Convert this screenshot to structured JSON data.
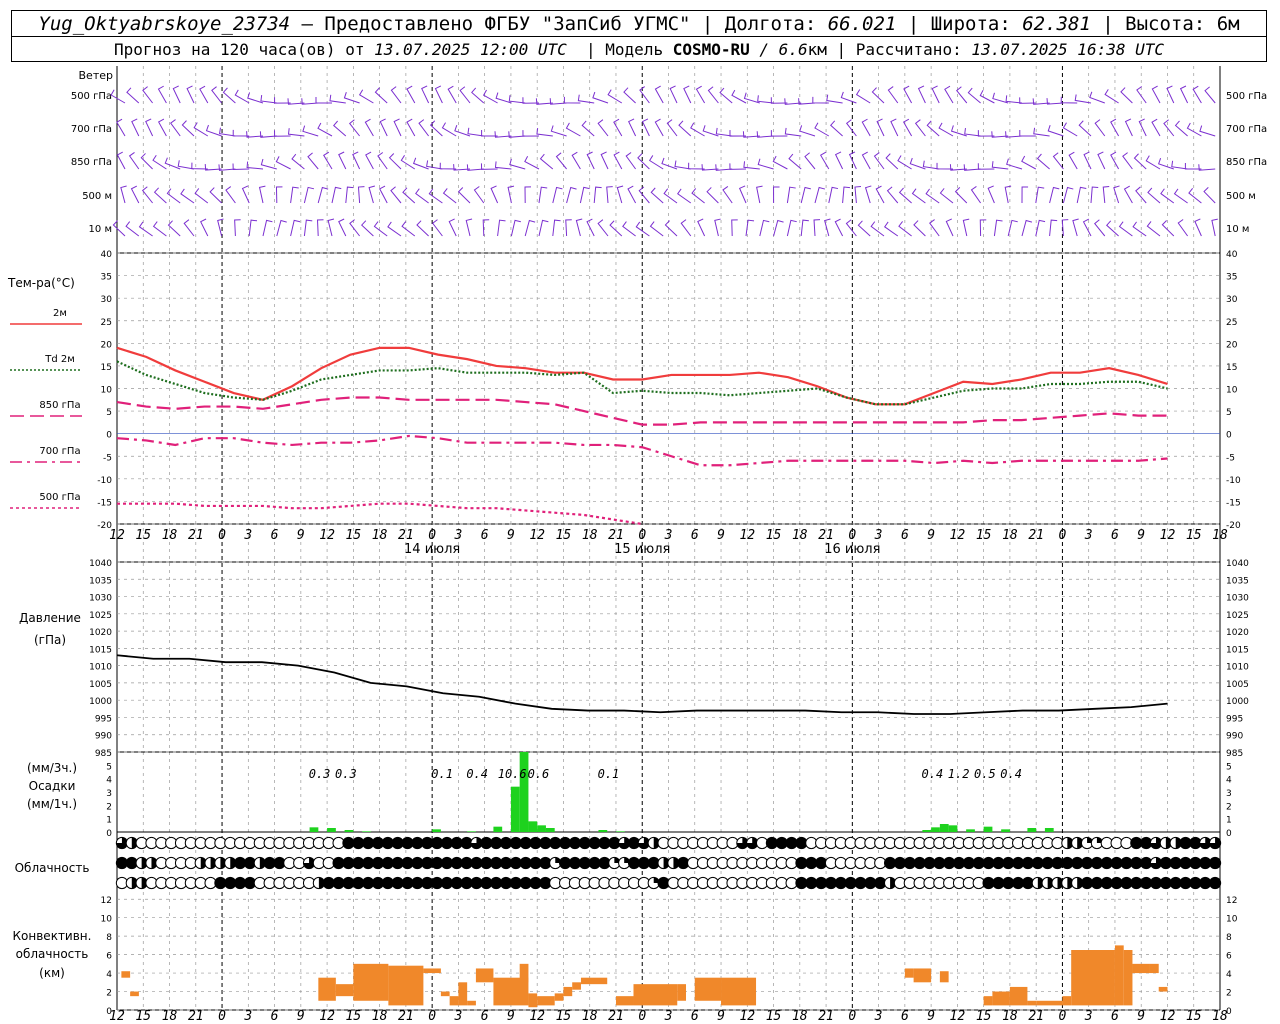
{
  "header": {
    "station": "Yug_Oktyabrskoye_23734",
    "provider": " – Предоставлено ФГБУ \"ЗапСиб УГМС\" | Долгота: ",
    "longitude": "66.021",
    "lat_label": " | Широта: ",
    "latitude": "62.381",
    "alt_label": " | Высота: 6м",
    "fc_label": "Прогноз на 120 часа(ов) от ",
    "fc_time": "13.07.2025 12:00 UTC",
    "model_label": "  | Модель ",
    "model": "COSMO-RU",
    "model_res": " / 6.6",
    "model_unit": "км | Рассчитано: ",
    "calc_time": "13.07.2025 16:38 UTC"
  },
  "colors": {
    "wind": "#7b2fd0",
    "t2m": "#f03c3c",
    "td2m": "#1e6e1e",
    "t850": "#e0207a",
    "t700": "#e0207a",
    "t500": "#e0207a",
    "pressure": "#000000",
    "precip": "#1ed21e",
    "conv": "#f0882a",
    "grid": "#999999"
  },
  "wind_panel": {
    "title": "Ветер",
    "levels": [
      "500 гПа",
      "700 гПа",
      "850 гПа",
      "500 м",
      "10  м"
    ]
  },
  "temp_panel": {
    "title": "Тем-ра(°C)",
    "legend": [
      {
        "label": "2м",
        "style": "solid"
      },
      {
        "label": "Td  2м",
        "style": "dotted"
      },
      {
        "label": "850 гПа",
        "style": "dash"
      },
      {
        "label": "700 гПа",
        "style": "dashdot"
      },
      {
        "label": "500 гПа",
        "style": "short"
      }
    ]
  },
  "pressure_panel": {
    "title1": "Давление",
    "title2": "(гПа)"
  },
  "precip_panel": {
    "l1": "(мм/3ч.)",
    "l2": "Осадки",
    "l3": "(мм/1ч.)"
  },
  "cloud_panel": {
    "title": "Облачность"
  },
  "conv_panel": {
    "l1": "Конвективн.",
    "l2": "облачность",
    "l3": "(км)"
  },
  "dates": [
    "14 июля",
    "15 июля",
    "16 июля"
  ],
  "chart_data": {
    "type": "line",
    "x_hours": [
      0,
      3,
      6,
      9,
      12,
      15,
      18,
      21,
      24,
      27,
      30,
      33,
      36,
      39,
      42,
      45,
      48,
      51,
      54,
      57,
      60,
      63,
      66,
      69,
      72,
      75,
      78,
      81,
      84,
      87,
      90,
      93,
      96,
      99,
      102,
      105,
      108,
      111,
      114,
      117,
      120
    ],
    "x_ticks": [
      "12",
      "15",
      "18",
      "21",
      "0",
      "3",
      "6",
      "9",
      "12",
      "15",
      "18",
      "21",
      "0",
      "3",
      "6",
      "9",
      "12",
      "15",
      "18",
      "21",
      "0",
      "3",
      "6",
      "9",
      "12",
      "15",
      "18",
      "21",
      "0",
      "3",
      "6",
      "9",
      "12",
      "15",
      "18",
      "21",
      "0",
      "3",
      "6",
      "9",
      "12",
      "15",
      "18"
    ],
    "temperature": {
      "ylim": [
        -20,
        40
      ],
      "yticks": [
        -20,
        -15,
        -10,
        -5,
        0,
        5,
        10,
        15,
        20,
        25,
        30,
        35,
        40
      ],
      "series": [
        {
          "name": "2м",
          "values": [
            19,
            17,
            14,
            11.5,
            9,
            7.5,
            10.5,
            14.5,
            17.5,
            19,
            19,
            17.5,
            16.5,
            15,
            14.5,
            13.5,
            13.5,
            12,
            12,
            13,
            13,
            13,
            13.5,
            12.5,
            10.5,
            8,
            6.5,
            6.5,
            9,
            11.5,
            11,
            12,
            13.5,
            13.5,
            14.5,
            13,
            11
          ]
        },
        {
          "name": "Td  2м",
          "values": [
            16,
            13,
            11,
            9,
            8,
            7.5,
            9.5,
            12,
            13,
            14,
            14,
            14.5,
            13.5,
            13.5,
            13.5,
            13,
            13.5,
            9,
            9.5,
            9,
            9,
            8.5,
            9,
            9.5,
            10,
            8,
            6.5,
            6.5,
            8,
            9.5,
            10,
            10,
            11,
            11,
            11.5,
            11.5,
            10
          ]
        },
        {
          "name": "850 гПа",
          "values": [
            7,
            6,
            5.5,
            6,
            6,
            5.5,
            6.5,
            7.5,
            8,
            8,
            7.5,
            7.5,
            7.5,
            7.5,
            7,
            6.5,
            5,
            3.5,
            2,
            2,
            2.5,
            2.5,
            2.5,
            2.5,
            2.5,
            2.5,
            2.5,
            2.5,
            2.5,
            2.5,
            3,
            3,
            3.5,
            4,
            4.5,
            4,
            4
          ]
        },
        {
          "name": "700 гПа",
          "values": [
            -1,
            -1.5,
            -2.5,
            -1,
            -1,
            -2,
            -2.5,
            -2,
            -2,
            -1.5,
            -0.5,
            -1,
            -2,
            -2,
            -2,
            -2,
            -2.5,
            -2.5,
            -3,
            -5,
            -7,
            -7,
            -6.5,
            -6,
            -6,
            -6,
            -6,
            -6,
            -6.5,
            -6,
            -6.5,
            -6,
            -6,
            -6,
            -6,
            -6,
            -5.5
          ]
        },
        {
          "name": "500 гПа",
          "values": [
            -15.5,
            -15.5,
            -15.5,
            -16,
            -16,
            -16,
            -16.5,
            -16.5,
            -16,
            -15.5,
            -15.5,
            -16,
            -16.5,
            -16.5,
            -17,
            -17.5,
            -18,
            -19,
            -20
          ]
        }
      ]
    },
    "pressure": {
      "ylim": [
        985,
        1040
      ],
      "yticks": [
        985,
        990,
        995,
        1000,
        1005,
        1010,
        1015,
        1020,
        1025,
        1030,
        1035,
        1040
      ],
      "values": [
        1013,
        1012,
        1012,
        1011,
        1011,
        1010,
        1008,
        1005,
        1004,
        1002,
        1001,
        999,
        997.5,
        997,
        997,
        996.5,
        997,
        997,
        997,
        997,
        996.5,
        996.5,
        996,
        996,
        996.5,
        997,
        997,
        997.5,
        998,
        999
      ]
    },
    "precipitation": {
      "ylim": [
        0,
        6
      ],
      "yticks": [
        0,
        1,
        2,
        3,
        4,
        5
      ],
      "labels_3h": [
        "0.3",
        "0.3",
        "0.1",
        "0.4",
        "10.6",
        "0.6",
        "0.1",
        "0.4",
        "1.2",
        "0.5",
        "0.4"
      ],
      "bars_1h": [
        {
          "h": 22,
          "v": 0.35
        },
        {
          "h": 24,
          "v": 0.3
        },
        {
          "h": 26,
          "v": 0.15
        },
        {
          "h": 28,
          "v": 0.05
        },
        {
          "h": 36,
          "v": 0.2
        },
        {
          "h": 40,
          "v": 0.05
        },
        {
          "h": 43,
          "v": 0.4
        },
        {
          "h": 45,
          "v": 3.4
        },
        {
          "h": 46,
          "v": 6.0
        },
        {
          "h": 47,
          "v": 0.8
        },
        {
          "h": 48,
          "v": 0.5
        },
        {
          "h": 49,
          "v": 0.3
        },
        {
          "h": 55,
          "v": 0.15
        },
        {
          "h": 57,
          "v": 0.05
        },
        {
          "h": 92,
          "v": 0.15
        },
        {
          "h": 93,
          "v": 0.35
        },
        {
          "h": 94,
          "v": 0.6
        },
        {
          "h": 95,
          "v": 0.5
        },
        {
          "h": 97,
          "v": 0.2
        },
        {
          "h": 99,
          "v": 0.4
        },
        {
          "h": 101,
          "v": 0.2
        },
        {
          "h": 104,
          "v": 0.3
        },
        {
          "h": 106,
          "v": 0.3
        }
      ]
    },
    "convective_cloud": {
      "ylim": [
        0,
        13
      ],
      "yticks": [
        0,
        2,
        4,
        6,
        8,
        10,
        12
      ],
      "bars": [
        {
          "h0": 0.5,
          "h1": 1.5,
          "lo": 3.5,
          "hi": 4.2
        },
        {
          "h0": 1.5,
          "h1": 2.5,
          "lo": 1.5,
          "hi": 2
        },
        {
          "h0": 23,
          "h1": 25,
          "lo": 1,
          "hi": 3.5
        },
        {
          "h0": 25,
          "h1": 27,
          "lo": 1.5,
          "hi": 2.8
        },
        {
          "h0": 27,
          "h1": 31,
          "lo": 1,
          "hi": 5
        },
        {
          "h0": 31,
          "h1": 35,
          "lo": 0.5,
          "hi": 4.8
        },
        {
          "h0": 35,
          "h1": 37,
          "lo": 4,
          "hi": 4.5
        },
        {
          "h0": 37,
          "h1": 38,
          "lo": 1.5,
          "hi": 2
        },
        {
          "h0": 38,
          "h1": 39,
          "lo": 0.5,
          "hi": 1.5
        },
        {
          "h0": 39,
          "h1": 40,
          "lo": 0.5,
          "hi": 3
        },
        {
          "h0": 40,
          "h1": 41,
          "lo": 0.5,
          "hi": 1
        },
        {
          "h0": 41,
          "h1": 43,
          "lo": 3,
          "hi": 4.5
        },
        {
          "h0": 43,
          "h1": 47,
          "lo": 0.5,
          "hi": 3.5
        },
        {
          "h0": 46,
          "h1": 47,
          "lo": 3,
          "hi": 5
        },
        {
          "h0": 47,
          "h1": 48,
          "lo": 0.3,
          "hi": 1.8
        },
        {
          "h0": 48,
          "h1": 50,
          "lo": 0.5,
          "hi": 1.5
        },
        {
          "h0": 50,
          "h1": 51,
          "lo": 1,
          "hi": 1.8
        },
        {
          "h0": 51,
          "h1": 52,
          "lo": 1.5,
          "hi": 2.5
        },
        {
          "h0": 52,
          "h1": 53,
          "lo": 2.2,
          "hi": 3
        },
        {
          "h0": 53,
          "h1": 56,
          "lo": 2.8,
          "hi": 3.5
        },
        {
          "h0": 57,
          "h1": 59,
          "lo": 0.5,
          "hi": 1.5
        },
        {
          "h0": 59,
          "h1": 64,
          "lo": 0.5,
          "hi": 2.8
        },
        {
          "h0": 64,
          "h1": 65,
          "lo": 1,
          "hi": 2.8
        },
        {
          "h0": 66,
          "h1": 69,
          "lo": 1,
          "hi": 3.5
        },
        {
          "h0": 69,
          "h1": 73,
          "lo": 0.5,
          "hi": 3.5
        },
        {
          "h0": 90,
          "h1": 91,
          "lo": 3.5,
          "hi": 4.5
        },
        {
          "h0": 91,
          "h1": 93,
          "lo": 3,
          "hi": 4.5
        },
        {
          "h0": 94,
          "h1": 95,
          "lo": 3,
          "hi": 4.2
        },
        {
          "h0": 99,
          "h1": 100,
          "lo": 0.5,
          "hi": 1.5
        },
        {
          "h0": 100,
          "h1": 102,
          "lo": 0.5,
          "hi": 2
        },
        {
          "h0": 102,
          "h1": 104,
          "lo": 0.5,
          "hi": 2.5
        },
        {
          "h0": 104,
          "h1": 105,
          "lo": 0.5,
          "hi": 1
        },
        {
          "h0": 105,
          "h1": 108,
          "lo": 0.5,
          "hi": 1
        },
        {
          "h0": 108,
          "h1": 109,
          "lo": 0.5,
          "hi": 1.5
        },
        {
          "h0": 109,
          "h1": 114,
          "lo": 0.5,
          "hi": 6.5
        },
        {
          "h0": 114,
          "h1": 115,
          "lo": 0.5,
          "hi": 7
        },
        {
          "h0": 115,
          "h1": 116,
          "lo": 0.5,
          "hi": 6.5
        },
        {
          "h0": 116,
          "h1": 118,
          "lo": 4,
          "hi": 5
        },
        {
          "h0": 118,
          "h1": 119,
          "lo": 4,
          "hi": 5
        },
        {
          "h0": 119,
          "h1": 120,
          "lo": 2,
          "hi": 2.5
        }
      ]
    },
    "cloudiness": {
      "rows": [
        "3200000000000000000000044444444444443444444444444443432000000003304444000000000000000000000000002211000443224433",
        "4422000022224424400300444444444444444444444414444411444224000000000004440000004444444444444444444444444443444444",
        "0220000000444400000024444444444444444444444400000000001400000000000004444444442000000000444442222244444444444444"
      ]
    }
  }
}
